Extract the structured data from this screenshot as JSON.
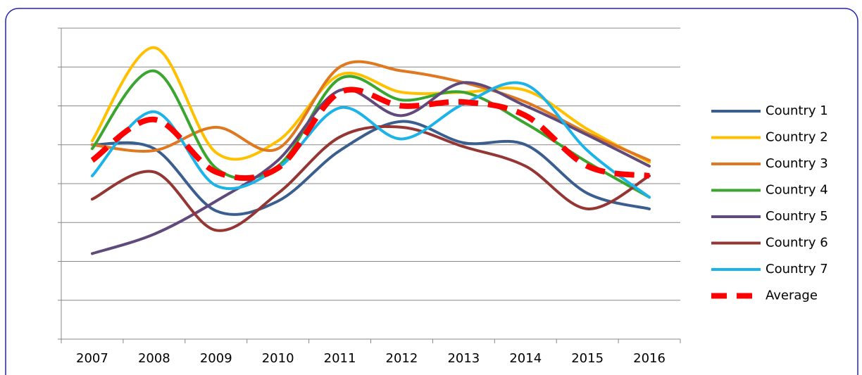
{
  "chart_data": {
    "type": "line",
    "categories": [
      "2007",
      "2008",
      "2009",
      "2010",
      "2011",
      "2012",
      "2013",
      "2014",
      "2015",
      "2016"
    ],
    "series": [
      {
        "name": "Country 1",
        "color": "#3a5f8e",
        "values": [
          5.0,
          4.9,
          3.3,
          3.55,
          4.85,
          5.6,
          5.05,
          5.0,
          3.75,
          3.35
        ]
      },
      {
        "name": "Country 2",
        "color": "#ffc000",
        "values": [
          5.1,
          7.5,
          4.8,
          5.1,
          6.8,
          6.35,
          6.35,
          6.4,
          5.4,
          4.55
        ]
      },
      {
        "name": "Country 3",
        "color": "#e07820",
        "values": [
          5.0,
          4.85,
          5.45,
          4.9,
          7.0,
          6.9,
          6.6,
          6.1,
          5.3,
          4.6
        ]
      },
      {
        "name": "Country 4",
        "color": "#3aa630",
        "values": [
          4.9,
          6.9,
          4.4,
          4.45,
          6.7,
          6.15,
          6.35,
          5.55,
          4.55,
          3.65
        ]
      },
      {
        "name": "Country 5",
        "color": "#604a7b",
        "values": [
          2.2,
          2.7,
          3.55,
          4.6,
          6.4,
          5.75,
          6.6,
          6.0,
          5.25,
          4.45
        ]
      },
      {
        "name": "Country 6",
        "color": "#943634",
        "values": [
          3.6,
          4.3,
          2.8,
          3.75,
          5.2,
          5.45,
          4.95,
          4.45,
          3.35,
          4.2
        ]
      },
      {
        "name": "Country 7",
        "color": "#1cb4e8",
        "values": [
          4.2,
          5.85,
          3.95,
          4.4,
          5.95,
          5.15,
          6.05,
          6.55,
          4.85,
          3.65
        ]
      },
      {
        "name": "Average",
        "color": "#ff0000",
        "dashed": true,
        "values": [
          4.6,
          5.65,
          4.3,
          4.4,
          6.35,
          6.0,
          6.1,
          5.75,
          4.45,
          4.2
        ]
      }
    ],
    "ylim": [
      0,
      8
    ],
    "yticks": [
      0,
      1,
      2,
      3,
      4,
      5,
      6,
      7,
      8
    ],
    "grid": true,
    "legend": "right"
  }
}
